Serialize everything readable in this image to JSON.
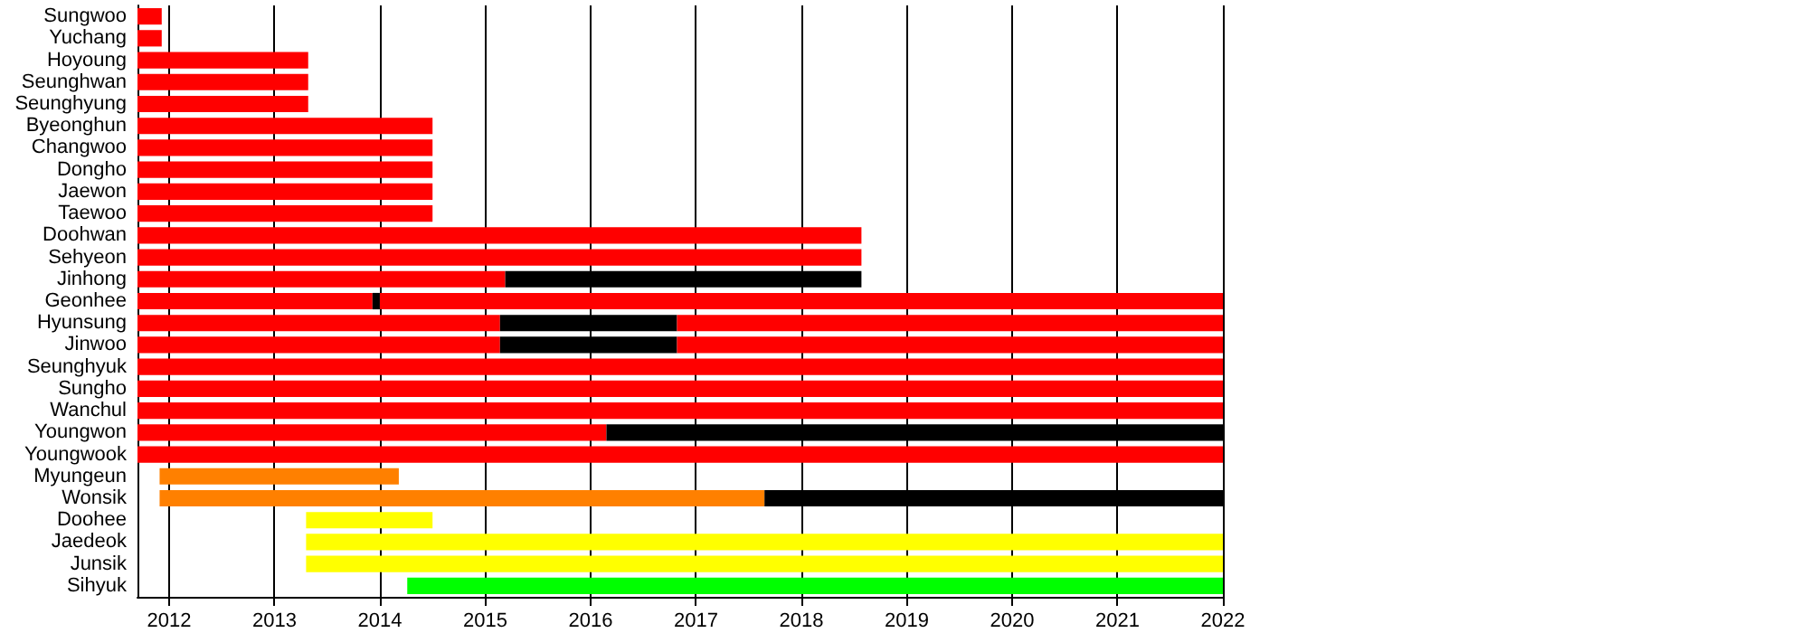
{
  "chart_data": {
    "type": "bar",
    "orientation": "horizontal",
    "categories": [
      "Sungwoo",
      "Yuchang",
      "Hoyoung",
      "Seunghwan",
      "Seunghyung",
      "Byeonghun",
      "Changwoo",
      "Dongho",
      "Jaewon",
      "Taewoo",
      "Doohwan",
      "Sehyeon",
      "Jinhong",
      "Geonhee",
      "Hyunsung",
      "Jinwoo",
      "Seunghyuk",
      "Sungho",
      "Wanchul",
      "Youngwon",
      "Youngwook",
      "Myungeun",
      "Wonsik",
      "Doohee",
      "Jaedeok",
      "Junsik",
      "Sihyuk"
    ],
    "series": [
      {
        "base": [
          2011.7,
          2011.7,
          2011.7,
          2011.7,
          2011.7,
          2011.7,
          2011.7,
          2011.7,
          2011.7,
          2011.7,
          2011.7,
          2011.7,
          2011.7,
          2011.7,
          2011.7,
          2011.7,
          2011.7,
          2011.7,
          2011.7,
          2011.7,
          2011.7,
          2011.91,
          2011.91,
          2013.3,
          2013.3,
          2013.3,
          2014.26
        ],
        "values": [
          0.23,
          0.23,
          1.62,
          1.62,
          1.62,
          2.8,
          2.8,
          2.8,
          2.8,
          2.8,
          6.87,
          6.87,
          3.49,
          2.23,
          3.44,
          3.44,
          10.3,
          10.3,
          10.3,
          4.45,
          10.3,
          2.27,
          5.74,
          1.2,
          8.7,
          8.7,
          7.74
        ],
        "colors": [
          "#ff0000",
          "#ff0000",
          "#ff0000",
          "#ff0000",
          "#ff0000",
          "#ff0000",
          "#ff0000",
          "#ff0000",
          "#ff0000",
          "#ff0000",
          "#ff0000",
          "#ff0000",
          "#ff0000",
          "#ff0000",
          "#ff0000",
          "#ff0000",
          "#ff0000",
          "#ff0000",
          "#ff0000",
          "#ff0000",
          "#ff0000",
          "#ff8000",
          "#ff8000",
          "#ffff00",
          "#ffff00",
          "#ffff00",
          "#00ff00"
        ]
      },
      {
        "color": "#000000",
        "base": [
          null,
          null,
          null,
          null,
          null,
          null,
          null,
          null,
          null,
          null,
          null,
          null,
          2015.19,
          2013.93,
          2015.14,
          2015.14,
          null,
          null,
          null,
          2016.15,
          null,
          null,
          2017.65,
          null,
          null,
          null,
          null
        ],
        "values": [
          null,
          null,
          null,
          null,
          null,
          null,
          null,
          null,
          null,
          null,
          null,
          null,
          3.38,
          0.07,
          1.68,
          1.68,
          null,
          null,
          null,
          5.85,
          null,
          null,
          4.35,
          null,
          null,
          null,
          null
        ]
      },
      {
        "color": "#ff0000",
        "base": [
          null,
          null,
          null,
          null,
          null,
          null,
          null,
          null,
          null,
          null,
          null,
          null,
          null,
          2014.0,
          2016.82,
          2016.82,
          null,
          null,
          null,
          null,
          null,
          null,
          null,
          null,
          null,
          null,
          null
        ],
        "values": [
          null,
          null,
          null,
          null,
          null,
          null,
          null,
          null,
          null,
          null,
          null,
          null,
          null,
          8.0,
          5.18,
          5.18,
          null,
          null,
          null,
          null,
          null,
          null,
          null,
          null,
          null,
          null,
          null
        ]
      }
    ],
    "xlim": [
      2011.7,
      2022
    ],
    "xticks": [
      2012,
      2013,
      2014,
      2015,
      2016,
      2017,
      2018,
      2019,
      2020,
      2021,
      2022
    ],
    "grid": "x"
  }
}
